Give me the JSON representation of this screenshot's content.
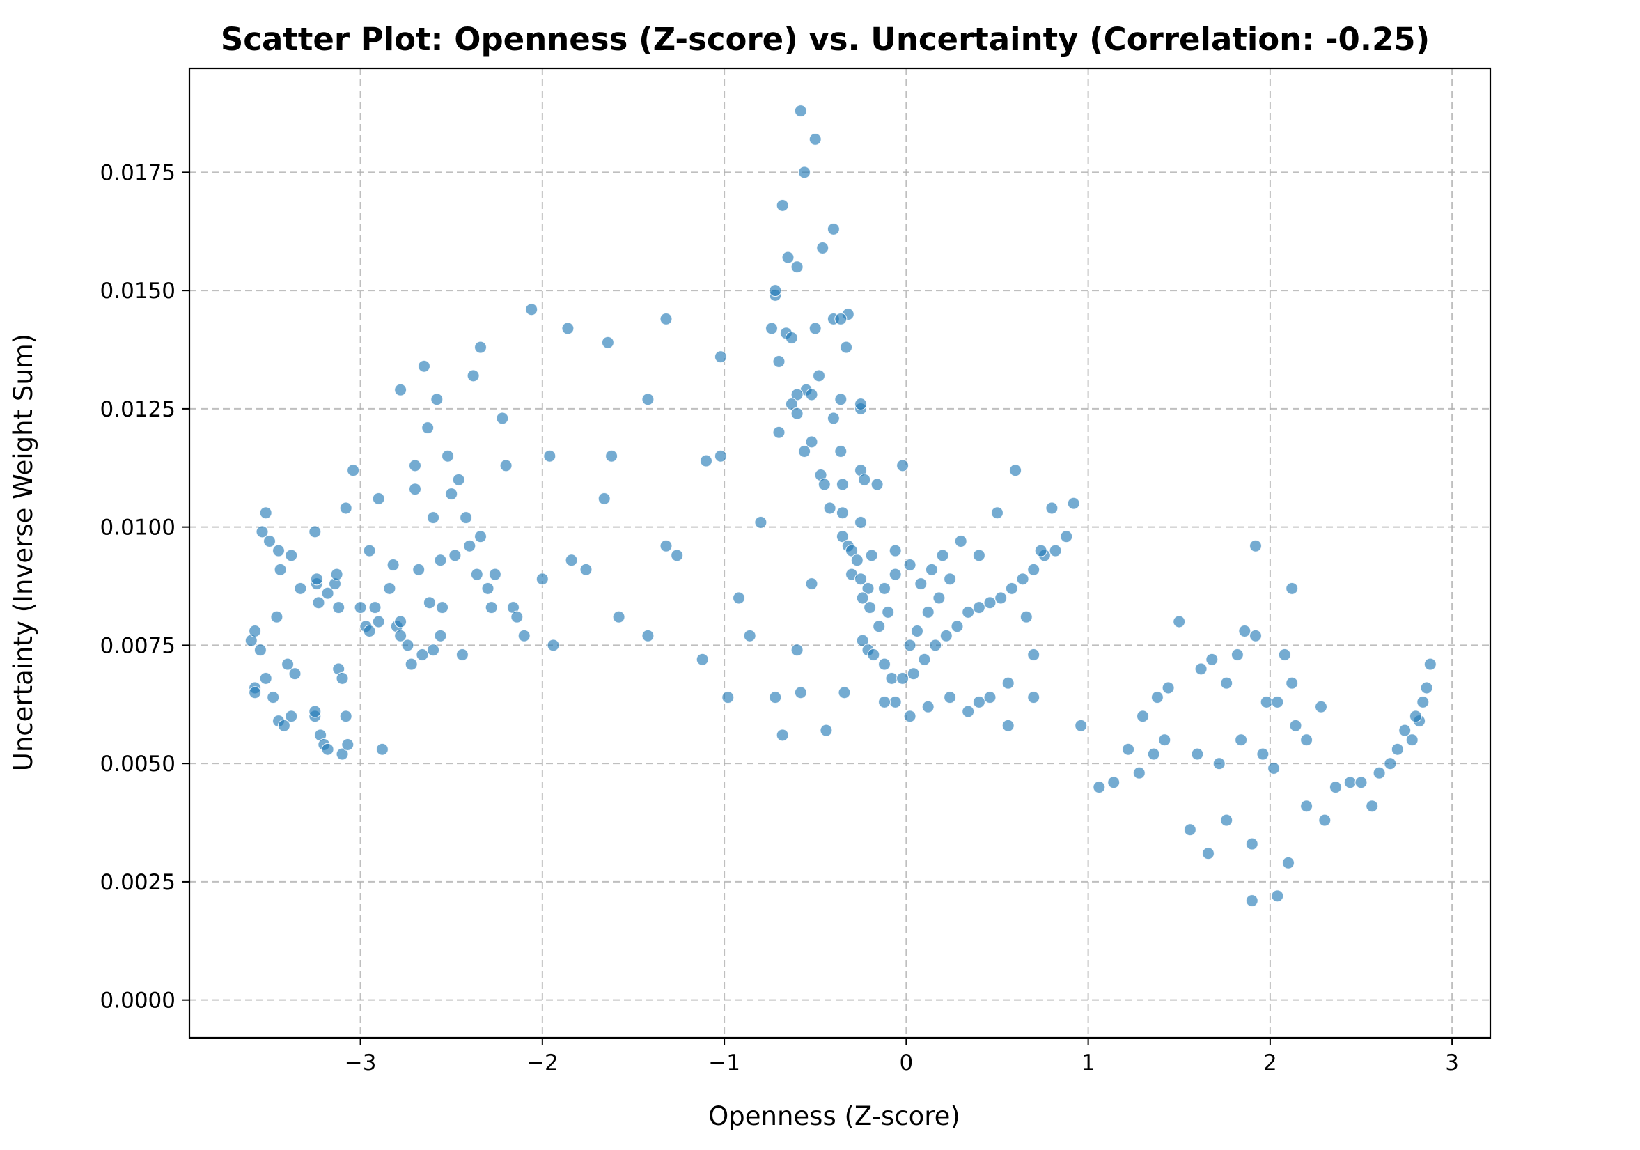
{
  "chart_data": {
    "type": "scatter",
    "title": "Scatter Plot: Openness (Z-score) vs. Uncertainty (Correlation: -0.25)",
    "xlabel": "Openness (Z-score)",
    "ylabel": "Uncertainty (Inverse Weight Sum)",
    "xlim": [
      -3.94,
      3.21
    ],
    "ylim": [
      -0.0008,
      0.0197
    ],
    "grid": true,
    "xticks": [
      -3,
      -2,
      -1,
      0,
      1,
      2,
      3
    ],
    "xtick_labels": [
      "−3",
      "−2",
      "−1",
      "0",
      "1",
      "2",
      "3"
    ],
    "yticks": [
      0.0,
      0.0025,
      0.005,
      0.0075,
      0.01,
      0.0125,
      0.015,
      0.0175
    ],
    "ytick_labels": [
      "0.0000",
      "0.0025",
      "0.0050",
      "0.0075",
      "0.0100",
      "0.0125",
      "0.0150",
      "0.0175"
    ],
    "marker_color": "#1f77b4",
    "series": [
      {
        "points": [
          [
            -0.58,
            0.0188
          ],
          [
            -0.5,
            0.0182
          ],
          [
            -0.56,
            0.0175
          ],
          [
            -0.68,
            0.0168
          ],
          [
            -0.4,
            0.0163
          ],
          [
            -0.46,
            0.0159
          ],
          [
            -0.65,
            0.0157
          ],
          [
            -0.6,
            0.0155
          ],
          [
            -0.72,
            0.0149
          ],
          [
            -0.72,
            0.015
          ],
          [
            -0.74,
            0.0142
          ],
          [
            -0.66,
            0.0141
          ],
          [
            -0.5,
            0.0142
          ],
          [
            -0.63,
            0.014
          ],
          [
            -0.4,
            0.0144
          ],
          [
            -0.32,
            0.0145
          ],
          [
            -0.36,
            0.0144
          ],
          [
            -0.33,
            0.0138
          ],
          [
            -0.7,
            0.0135
          ],
          [
            -0.48,
            0.0132
          ],
          [
            -0.55,
            0.0129
          ],
          [
            -0.6,
            0.0128
          ],
          [
            -0.52,
            0.0128
          ],
          [
            -0.63,
            0.0126
          ],
          [
            -0.36,
            0.0127
          ],
          [
            -0.25,
            0.0125
          ],
          [
            -0.25,
            0.0126
          ],
          [
            -0.6,
            0.0124
          ],
          [
            -0.4,
            0.0123
          ],
          [
            -0.7,
            0.012
          ],
          [
            -0.52,
            0.0118
          ],
          [
            -0.56,
            0.0116
          ],
          [
            -0.36,
            0.0116
          ],
          [
            -0.25,
            0.0112
          ],
          [
            -0.47,
            0.0111
          ],
          [
            -0.23,
            0.011
          ],
          [
            -0.16,
            0.0109
          ],
          [
            -0.45,
            0.0109
          ],
          [
            -0.35,
            0.0109
          ],
          [
            -0.02,
            0.0113
          ],
          [
            -0.42,
            0.0104
          ],
          [
            -0.35,
            0.0103
          ],
          [
            -0.25,
            0.0101
          ],
          [
            -0.35,
            0.0098
          ],
          [
            -0.32,
            0.0096
          ],
          [
            -0.3,
            0.0095
          ],
          [
            -0.27,
            0.0093
          ],
          [
            -0.19,
            0.0094
          ],
          [
            -0.3,
            0.009
          ],
          [
            -0.25,
            0.0089
          ],
          [
            -0.21,
            0.0087
          ],
          [
            -0.24,
            0.0085
          ],
          [
            -0.2,
            0.0083
          ],
          [
            -0.12,
            0.0087
          ],
          [
            -0.06,
            0.0095
          ],
          [
            -0.06,
            0.009
          ],
          [
            -0.1,
            0.0082
          ],
          [
            -0.15,
            0.0079
          ],
          [
            -0.24,
            0.0076
          ],
          [
            -0.21,
            0.0074
          ],
          [
            -0.18,
            0.0073
          ],
          [
            -0.12,
            0.0071
          ],
          [
            -0.08,
            0.0068
          ],
          [
            -0.02,
            0.0068
          ],
          [
            0.04,
            0.0069
          ],
          [
            0.1,
            0.0072
          ],
          [
            0.16,
            0.0075
          ],
          [
            0.22,
            0.0077
          ],
          [
            0.28,
            0.0079
          ],
          [
            0.34,
            0.0082
          ],
          [
            0.4,
            0.0083
          ],
          [
            0.46,
            0.0084
          ],
          [
            0.52,
            0.0085
          ],
          [
            0.58,
            0.0087
          ],
          [
            0.64,
            0.0089
          ],
          [
            0.7,
            0.0091
          ],
          [
            0.76,
            0.0094
          ],
          [
            0.82,
            0.0095
          ],
          [
            0.88,
            0.0098
          ],
          [
            0.92,
            0.0105
          ],
          [
            0.8,
            0.0104
          ],
          [
            0.74,
            0.0095
          ],
          [
            0.6,
            0.0112
          ],
          [
            0.5,
            0.0103
          ],
          [
            0.3,
            0.0097
          ],
          [
            0.4,
            0.0094
          ],
          [
            0.2,
            0.0094
          ],
          [
            0.24,
            0.0089
          ],
          [
            0.18,
            0.0085
          ],
          [
            0.12,
            0.0082
          ],
          [
            0.06,
            0.0078
          ],
          [
            0.02,
            0.0075
          ],
          [
            0.08,
            0.0088
          ],
          [
            0.02,
            0.0092
          ],
          [
            0.14,
            0.0091
          ],
          [
            0.66,
            0.0081
          ],
          [
            0.7,
            0.0073
          ],
          [
            0.56,
            0.0067
          ],
          [
            0.46,
            0.0064
          ],
          [
            0.7,
            0.0064
          ],
          [
            0.56,
            0.0058
          ],
          [
            0.4,
            0.0063
          ],
          [
            0.34,
            0.0061
          ],
          [
            0.24,
            0.0064
          ],
          [
            0.12,
            0.0062
          ],
          [
            0.02,
            0.006
          ],
          [
            -0.06,
            0.0063
          ],
          [
            -0.12,
            0.0063
          ],
          [
            -3.6,
            0.0076
          ],
          [
            -3.58,
            0.0078
          ],
          [
            -3.55,
            0.0074
          ],
          [
            -3.58,
            0.0066
          ],
          [
            -3.58,
            0.0065
          ],
          [
            -3.52,
            0.0068
          ],
          [
            -3.48,
            0.0064
          ],
          [
            -3.45,
            0.0059
          ],
          [
            -3.42,
            0.0058
          ],
          [
            -3.38,
            0.006
          ],
          [
            -3.54,
            0.0099
          ],
          [
            -3.52,
            0.0103
          ],
          [
            -3.5,
            0.0097
          ],
          [
            -3.45,
            0.0095
          ],
          [
            -3.44,
            0.0091
          ],
          [
            -3.38,
            0.0094
          ],
          [
            -3.46,
            0.0081
          ],
          [
            -3.4,
            0.0071
          ],
          [
            -3.36,
            0.0069
          ],
          [
            -3.33,
            0.0087
          ],
          [
            -3.24,
            0.0088
          ],
          [
            -3.24,
            0.0089
          ],
          [
            -3.23,
            0.0084
          ],
          [
            -3.18,
            0.0086
          ],
          [
            -3.14,
            0.0088
          ],
          [
            -3.13,
            0.009
          ],
          [
            -3.12,
            0.0083
          ],
          [
            -3.25,
            0.0099
          ],
          [
            -3.25,
            0.006
          ],
          [
            -3.25,
            0.0061
          ],
          [
            -3.22,
            0.0056
          ],
          [
            -3.2,
            0.0054
          ],
          [
            -3.18,
            0.0053
          ],
          [
            -3.12,
            0.007
          ],
          [
            -3.1,
            0.0068
          ],
          [
            -3.1,
            0.0052
          ],
          [
            -3.07,
            0.0054
          ],
          [
            -3.08,
            0.006
          ],
          [
            -3.08,
            0.0104
          ],
          [
            -3.04,
            0.0112
          ],
          [
            -3.0,
            0.0083
          ],
          [
            -2.97,
            0.0079
          ],
          [
            -2.95,
            0.0078
          ],
          [
            -2.95,
            0.0095
          ],
          [
            -2.92,
            0.0083
          ],
          [
            -2.9,
            0.0106
          ],
          [
            -2.9,
            0.008
          ],
          [
            -2.88,
            0.0053
          ],
          [
            -2.84,
            0.0087
          ],
          [
            -2.82,
            0.0092
          ],
          [
            -2.8,
            0.0079
          ],
          [
            -2.78,
            0.008
          ],
          [
            -2.78,
            0.0077
          ],
          [
            -2.78,
            0.0129
          ],
          [
            -2.74,
            0.0075
          ],
          [
            -2.72,
            0.0071
          ],
          [
            -2.7,
            0.0108
          ],
          [
            -2.7,
            0.0113
          ],
          [
            -2.68,
            0.0091
          ],
          [
            -2.66,
            0.0073
          ],
          [
            -2.65,
            0.0134
          ],
          [
            -2.63,
            0.0121
          ],
          [
            -2.62,
            0.0084
          ],
          [
            -2.6,
            0.0102
          ],
          [
            -2.6,
            0.0074
          ],
          [
            -2.58,
            0.0127
          ],
          [
            -2.56,
            0.0093
          ],
          [
            -2.56,
            0.0077
          ],
          [
            -2.55,
            0.0083
          ],
          [
            -2.52,
            0.0115
          ],
          [
            -2.5,
            0.0107
          ],
          [
            -2.48,
            0.0094
          ],
          [
            -2.46,
            0.011
          ],
          [
            -2.44,
            0.0073
          ],
          [
            -2.42,
            0.0102
          ],
          [
            -2.4,
            0.0096
          ],
          [
            -2.38,
            0.0132
          ],
          [
            -2.36,
            0.009
          ],
          [
            -2.34,
            0.0098
          ],
          [
            -2.34,
            0.0138
          ],
          [
            -2.3,
            0.0087
          ],
          [
            -2.28,
            0.0083
          ],
          [
            -2.26,
            0.009
          ],
          [
            -2.22,
            0.0123
          ],
          [
            -2.2,
            0.0113
          ],
          [
            -2.16,
            0.0083
          ],
          [
            -2.14,
            0.0081
          ],
          [
            -2.1,
            0.0077
          ],
          [
            -2.06,
            0.0146
          ],
          [
            -2.0,
            0.0089
          ],
          [
            -1.96,
            0.0115
          ],
          [
            -1.94,
            0.0075
          ],
          [
            -1.86,
            0.0142
          ],
          [
            -1.84,
            0.0093
          ],
          [
            -1.76,
            0.0091
          ],
          [
            -1.66,
            0.0106
          ],
          [
            -1.62,
            0.0115
          ],
          [
            -1.64,
            0.0139
          ],
          [
            -1.58,
            0.0081
          ],
          [
            -1.42,
            0.0127
          ],
          [
            -1.42,
            0.0077
          ],
          [
            -1.32,
            0.0144
          ],
          [
            -1.32,
            0.0096
          ],
          [
            -1.26,
            0.0094
          ],
          [
            -1.12,
            0.0072
          ],
          [
            -1.1,
            0.0114
          ],
          [
            -1.02,
            0.0136
          ],
          [
            -1.02,
            0.0115
          ],
          [
            -0.98,
            0.0064
          ],
          [
            -0.92,
            0.0085
          ],
          [
            -0.86,
            0.0077
          ],
          [
            -0.8,
            0.0101
          ],
          [
            -0.72,
            0.0064
          ],
          [
            -0.68,
            0.0056
          ],
          [
            -0.58,
            0.0065
          ],
          [
            -0.6,
            0.0074
          ],
          [
            -0.52,
            0.0088
          ],
          [
            -0.44,
            0.0057
          ],
          [
            -0.34,
            0.0065
          ],
          [
            1.5,
            0.008
          ],
          [
            1.62,
            0.007
          ],
          [
            1.68,
            0.0072
          ],
          [
            1.76,
            0.0067
          ],
          [
            1.82,
            0.0073
          ],
          [
            1.86,
            0.0078
          ],
          [
            1.92,
            0.0096
          ],
          [
            1.92,
            0.0077
          ],
          [
            1.98,
            0.0063
          ],
          [
            2.04,
            0.0063
          ],
          [
            2.08,
            0.0073
          ],
          [
            2.12,
            0.0087
          ],
          [
            2.12,
            0.0067
          ],
          [
            2.14,
            0.0058
          ],
          [
            2.2,
            0.0055
          ],
          [
            2.28,
            0.0062
          ],
          [
            2.36,
            0.0045
          ],
          [
            2.44,
            0.0046
          ],
          [
            2.5,
            0.0046
          ],
          [
            2.56,
            0.0041
          ],
          [
            2.6,
            0.0048
          ],
          [
            2.66,
            0.005
          ],
          [
            2.7,
            0.0053
          ],
          [
            2.74,
            0.0057
          ],
          [
            2.78,
            0.0055
          ],
          [
            2.82,
            0.0059
          ],
          [
            2.84,
            0.0063
          ],
          [
            2.86,
            0.0066
          ],
          [
            2.88,
            0.0071
          ],
          [
            2.8,
            0.006
          ],
          [
            1.3,
            0.006
          ],
          [
            1.38,
            0.0064
          ],
          [
            1.44,
            0.0066
          ],
          [
            1.42,
            0.0055
          ],
          [
            1.36,
            0.0052
          ],
          [
            1.28,
            0.0048
          ],
          [
            1.22,
            0.0053
          ],
          [
            1.14,
            0.0046
          ],
          [
            1.06,
            0.0045
          ],
          [
            0.96,
            0.0058
          ],
          [
            1.6,
            0.0052
          ],
          [
            1.72,
            0.005
          ],
          [
            1.84,
            0.0055
          ],
          [
            1.96,
            0.0052
          ],
          [
            2.02,
            0.0049
          ],
          [
            2.2,
            0.0041
          ],
          [
            2.3,
            0.0038
          ],
          [
            1.9,
            0.0033
          ],
          [
            1.76,
            0.0038
          ],
          [
            1.66,
            0.0031
          ],
          [
            1.56,
            0.0036
          ],
          [
            2.1,
            0.0029
          ],
          [
            1.9,
            0.0021
          ],
          [
            2.04,
            0.0022
          ]
        ]
      }
    ]
  }
}
